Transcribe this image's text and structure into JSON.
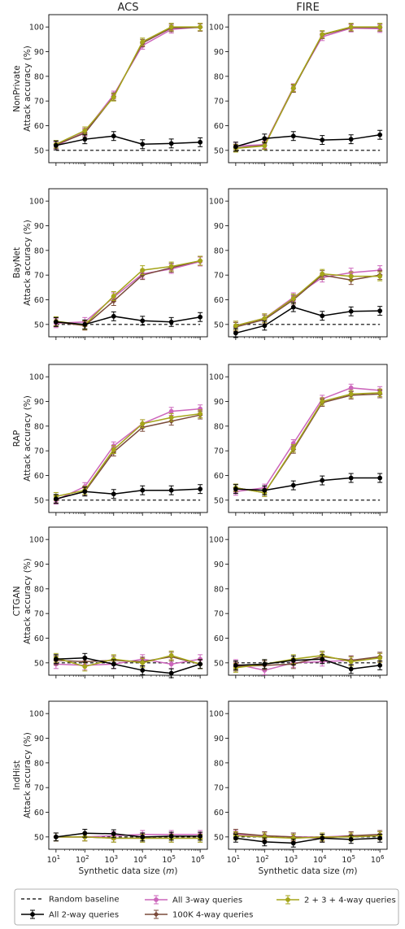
{
  "figure": {
    "columns": [
      "ACS",
      "FIRE"
    ],
    "rows": [
      "NonPrivate",
      "BayNet",
      "RAP",
      "CTGAN",
      "IndHist"
    ],
    "ylabel": "Attack accuracy (%)",
    "xlabel": "Synthetic data size (m)",
    "xlabel_prefix": "Synthetic data size (",
    "xlabel_var": "m",
    "xlabel_suffix": ")",
    "x_tick_labels": [
      "10^1",
      "10^2",
      "10^3",
      "10^4",
      "10^5",
      "10^6"
    ],
    "y_tick_labels": [
      "50",
      "60",
      "70",
      "80",
      "90",
      "100"
    ],
    "colors": {
      "baseline": "#000000",
      "all2": "#000000",
      "all3": "#cc66bb",
      "k100_4": "#7a4a3a",
      "two34": "#a5a51a"
    },
    "legend": [
      {
        "key": "baseline",
        "label": "Random baseline",
        "style": "dashed"
      },
      {
        "key": "all2",
        "label": "All 2-way queries",
        "style": "marker"
      },
      {
        "key": "all3",
        "label": "All 3-way queries",
        "style": "marker"
      },
      {
        "key": "k100_4",
        "label": "100K 4-way queries",
        "style": "marker"
      },
      {
        "key": "two34",
        "label": "2 + 3 + 4-way queries",
        "style": "marker"
      }
    ]
  },
  "chart_data": [
    {
      "type": "line",
      "row": "NonPrivate",
      "column": "ACS",
      "x": [
        10,
        100,
        1000,
        10000,
        100000,
        1000000
      ],
      "xscale": "log",
      "ylim": [
        45,
        105
      ],
      "baseline": 50,
      "series": [
        {
          "name": "All 2-way queries",
          "key": "all2",
          "values": [
            52,
            54.5,
            55.8,
            52.5,
            52.8,
            53.3
          ],
          "err": 1.8
        },
        {
          "name": "All 3-way queries",
          "key": "all3",
          "values": [
            51.8,
            57.5,
            72.5,
            92.5,
            99,
            100
          ],
          "err": 1.5
        },
        {
          "name": "100K 4-way queries",
          "key": "k100_4",
          "values": [
            52.3,
            57,
            71.8,
            93.5,
            99.6,
            99.8
          ],
          "err": 1.5
        },
        {
          "name": "2 + 3 + 4-way queries",
          "key": "two34",
          "values": [
            52.5,
            58,
            71.5,
            94,
            100,
            100
          ],
          "err": 1.5
        }
      ]
    },
    {
      "type": "line",
      "row": "NonPrivate",
      "column": "FIRE",
      "x": [
        10,
        100,
        1000,
        10000,
        100000,
        1000000
      ],
      "xscale": "log",
      "ylim": [
        45,
        105
      ],
      "baseline": 50,
      "series": [
        {
          "name": "All 2-way queries",
          "key": "all2",
          "values": [
            51.5,
            54.8,
            55.8,
            54.2,
            54.5,
            56.3
          ],
          "err": 1.8
        },
        {
          "name": "All 3-way queries",
          "key": "all3",
          "values": [
            51.8,
            52.3,
            75.5,
            96,
            99.5,
            99.3
          ],
          "err": 1.5
        },
        {
          "name": "100K 4-way queries",
          "key": "k100_4",
          "values": [
            51,
            52,
            75,
            96.8,
            99.8,
            99.8
          ],
          "err": 1.5
        },
        {
          "name": "2 + 3 + 4-way queries",
          "key": "two34",
          "values": [
            50.8,
            51.8,
            75.3,
            97,
            100,
            100
          ],
          "err": 1.5
        }
      ]
    },
    {
      "type": "line",
      "row": "BayNet",
      "column": "ACS",
      "x": [
        10,
        100,
        1000,
        10000,
        100000,
        1000000
      ],
      "xscale": "log",
      "ylim": [
        45,
        105
      ],
      "baseline": 50,
      "series": [
        {
          "name": "All 2-way queries",
          "key": "all2",
          "values": [
            51,
            50,
            53.3,
            51.5,
            51,
            53
          ],
          "err": 1.8
        },
        {
          "name": "All 3-way queries",
          "key": "all3",
          "values": [
            50.5,
            51,
            61,
            70.5,
            72.5,
            75.5
          ],
          "err": 1.8
        },
        {
          "name": "100K 4-way queries",
          "key": "k100_4",
          "values": [
            51,
            49.5,
            59.5,
            70,
            73,
            75.8
          ],
          "err": 1.8
        },
        {
          "name": "2 + 3 + 4-way queries",
          "key": "two34",
          "values": [
            51.3,
            49.8,
            61.5,
            72,
            73.5,
            75.8
          ],
          "err": 1.8
        }
      ]
    },
    {
      "type": "line",
      "row": "BayNet",
      "column": "FIRE",
      "x": [
        10,
        100,
        1000,
        10000,
        100000,
        1000000
      ],
      "xscale": "log",
      "ylim": [
        45,
        105
      ],
      "baseline": 50,
      "series": [
        {
          "name": "All 2-way queries",
          "key": "all2",
          "values": [
            46.5,
            49.5,
            57,
            53.5,
            55.3,
            55.5
          ],
          "err": 1.8
        },
        {
          "name": "All 3-way queries",
          "key": "all3",
          "values": [
            49.5,
            52.5,
            61,
            69,
            71,
            72
          ],
          "err": 1.8
        },
        {
          "name": "100K 4-way queries",
          "key": "k100_4",
          "values": [
            49,
            52,
            60,
            70,
            68,
            70
          ],
          "err": 1.8
        },
        {
          "name": "2 + 3 + 4-way queries",
          "key": "two34",
          "values": [
            49.5,
            52.5,
            60.5,
            70.5,
            69.5,
            69.5
          ],
          "err": 1.8
        }
      ]
    },
    {
      "type": "line",
      "row": "RAP",
      "column": "ACS",
      "x": [
        10,
        100,
        1000,
        10000,
        100000,
        1000000
      ],
      "xscale": "log",
      "ylim": [
        45,
        105
      ],
      "baseline": 50,
      "series": [
        {
          "name": "All 2-way queries",
          "key": "all2",
          "values": [
            50.5,
            53.5,
            52.5,
            54,
            54,
            54.5
          ],
          "err": 1.8
        },
        {
          "name": "All 3-way queries",
          "key": "all3",
          "values": [
            50,
            55.5,
            72,
            81,
            86,
            87
          ],
          "err": 1.6
        },
        {
          "name": "100K 4-way queries",
          "key": "k100_4",
          "values": [
            50.5,
            53.5,
            69.5,
            79.5,
            82,
            84.5
          ],
          "err": 1.6
        },
        {
          "name": "2 + 3 + 4-way queries",
          "key": "two34",
          "values": [
            51.5,
            54,
            70.5,
            81,
            83.5,
            85
          ],
          "err": 1.6
        }
      ]
    },
    {
      "type": "line",
      "row": "RAP",
      "column": "FIRE",
      "x": [
        10,
        100,
        1000,
        10000,
        100000,
        1000000
      ],
      "xscale": "log",
      "ylim": [
        45,
        105
      ],
      "baseline": 50,
      "series": [
        {
          "name": "All 2-way queries",
          "key": "all2",
          "values": [
            54.5,
            54,
            56,
            58,
            59,
            59
          ],
          "err": 1.8
        },
        {
          "name": "All 3-way queries",
          "key": "all3",
          "values": [
            53.5,
            55,
            73,
            91,
            95.5,
            94.5
          ],
          "err": 1.5
        },
        {
          "name": "100K 4-way queries",
          "key": "k100_4",
          "values": [
            55,
            53,
            70.5,
            89.5,
            92.5,
            93
          ],
          "err": 1.5
        },
        {
          "name": "2 + 3 + 4-way queries",
          "key": "two34",
          "values": [
            55,
            53,
            71,
            90,
            93,
            93.5
          ],
          "err": 1.5
        }
      ]
    },
    {
      "type": "line",
      "row": "CTGAN",
      "column": "ACS",
      "x": [
        10,
        100,
        1000,
        10000,
        100000,
        1000000
      ],
      "xscale": "log",
      "ylim": [
        45,
        105
      ],
      "baseline": 50,
      "series": [
        {
          "name": "All 2-way queries",
          "key": "all2",
          "values": [
            51.5,
            52,
            49.5,
            47,
            45.8,
            49.5
          ],
          "err": 1.8
        },
        {
          "name": "All 3-way queries",
          "key": "all3",
          "values": [
            49.5,
            49,
            49.5,
            51.5,
            49.5,
            51.5
          ],
          "err": 1.8
        },
        {
          "name": "100K 4-way queries",
          "key": "k100_4",
          "values": [
            51,
            50.5,
            51,
            50.5,
            52.5,
            49.5
          ],
          "err": 1.8
        },
        {
          "name": "2 + 3 + 4-way queries",
          "key": "two34",
          "values": [
            52,
            48.5,
            51.5,
            50,
            53,
            49.5
          ],
          "err": 1.8
        }
      ]
    },
    {
      "type": "line",
      "row": "CTGAN",
      "column": "FIRE",
      "x": [
        10,
        100,
        1000,
        10000,
        100000,
        1000000
      ],
      "xscale": "log",
      "ylim": [
        45,
        105
      ],
      "baseline": 50,
      "series": [
        {
          "name": "All 2-way queries",
          "key": "all2",
          "values": [
            49,
            49.5,
            51,
            51.5,
            47.5,
            49
          ],
          "err": 1.8
        },
        {
          "name": "All 3-way queries",
          "key": "all3",
          "values": [
            49.5,
            47,
            50,
            50.5,
            51,
            52
          ],
          "err": 1.8
        },
        {
          "name": "100K 4-way queries",
          "key": "k100_4",
          "values": [
            48.5,
            49,
            49.5,
            52.5,
            51,
            52.5
          ],
          "err": 1.8
        },
        {
          "name": "2 + 3 + 4-way queries",
          "key": "two34",
          "values": [
            48,
            49.5,
            51.5,
            53,
            50.5,
            52
          ],
          "err": 1.8
        }
      ]
    },
    {
      "type": "line",
      "row": "IndHist",
      "column": "ACS",
      "x": [
        10,
        100,
        1000,
        10000,
        100000,
        1000000
      ],
      "xscale": "log",
      "ylim": [
        45,
        105
      ],
      "baseline": 50,
      "series": [
        {
          "name": "All 2-way queries",
          "key": "all2",
          "values": [
            50,
            51.5,
            51.3,
            50,
            50.3,
            50.3
          ],
          "err": 1.6
        },
        {
          "name": "All 3-way queries",
          "key": "all3",
          "values": [
            50,
            50,
            50.5,
            51,
            51,
            51
          ],
          "err": 1.6
        },
        {
          "name": "100K 4-way queries",
          "key": "k100_4",
          "values": [
            50,
            50,
            49.5,
            49.5,
            49.5,
            49.5
          ],
          "err": 1.6
        },
        {
          "name": "2 + 3 + 4-way queries",
          "key": "two34",
          "values": [
            50,
            50,
            49.5,
            49.5,
            49.5,
            49.5
          ],
          "err": 1.6
        }
      ]
    },
    {
      "type": "line",
      "row": "IndHist",
      "column": "FIRE",
      "x": [
        10,
        100,
        1000,
        10000,
        100000,
        1000000
      ],
      "xscale": "log",
      "ylim": [
        45,
        105
      ],
      "baseline": 50,
      "series": [
        {
          "name": "All 2-way queries",
          "key": "all2",
          "values": [
            49.5,
            48,
            47.5,
            49.5,
            49,
            49.5
          ],
          "err": 1.6
        },
        {
          "name": "All 3-way queries",
          "key": "all3",
          "values": [
            51,
            50.5,
            50,
            50,
            50.5,
            50.5
          ],
          "err": 1.6
        },
        {
          "name": "100K 4-way queries",
          "key": "k100_4",
          "values": [
            51.5,
            50.5,
            50,
            49.5,
            50.5,
            51
          ],
          "err": 1.6
        },
        {
          "name": "2 + 3 + 4-way queries",
          "key": "two34",
          "values": [
            50.5,
            50,
            49.5,
            50,
            50,
            50.5
          ],
          "err": 1.6
        }
      ]
    }
  ]
}
